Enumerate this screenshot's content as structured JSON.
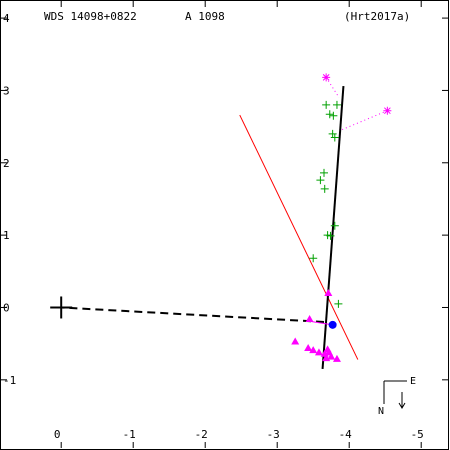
{
  "chart_data": {
    "type": "scatter",
    "header": {
      "wds": "WDS 14098+0822",
      "pair": "A  1098",
      "reference": "(Hrt2017a)"
    },
    "orientation": {
      "north": "N",
      "east": "E"
    },
    "xlim": [
      0.85,
      -5.4
    ],
    "ylim": [
      -1.97,
      4.25
    ],
    "x_ticks": [
      -5,
      -4,
      -3,
      -2,
      -1,
      0
    ],
    "y_ticks": [
      -1,
      0,
      1,
      2,
      3,
      4
    ],
    "colors": {
      "frame": "#000000",
      "green_obs": "#00a000",
      "magenta_obs": "#ff00ff",
      "red_line": "#ff0000",
      "blue_point": "#0000ff"
    },
    "primary": [
      0,
      0
    ],
    "fitted_line": [
      [
        -3.92,
        3.06
      ],
      [
        -3.63,
        -0.85
      ]
    ],
    "node_line": [
      [
        -4.12,
        -0.72
      ],
      [
        -2.48,
        2.66
      ]
    ],
    "latest_position": [
      -3.77,
      -0.24
    ],
    "latest_connector": [
      [
        -3.77,
        -0.24
      ],
      [
        -3.45,
        -0.19
      ]
    ],
    "separation_line": [
      [
        -3.65,
        -0.2
      ],
      [
        0,
        0
      ]
    ],
    "green_observations": [
      [
        -3.83,
        2.8
      ],
      [
        -3.68,
        2.8
      ],
      [
        -3.73,
        2.67
      ],
      [
        -3.78,
        2.65
      ],
      [
        -3.77,
        2.4
      ],
      [
        -3.8,
        2.35
      ],
      [
        -3.65,
        1.86
      ],
      [
        -3.6,
        1.76
      ],
      [
        -3.66,
        1.64
      ],
      [
        -3.8,
        1.13
      ],
      [
        -3.7,
        1.0
      ],
      [
        -3.74,
        0.99
      ],
      [
        -3.5,
        0.68
      ],
      [
        -3.85,
        0.05
      ]
    ],
    "magenta_stars": [
      [
        -4.53,
        2.72
      ],
      [
        -3.68,
        3.18
      ]
    ],
    "magenta_triangles": [
      [
        -3.71,
        0.2
      ],
      [
        -3.45,
        -0.16
      ],
      [
        -3.7,
        -0.58
      ],
      [
        -3.72,
        -0.62
      ],
      [
        -3.66,
        -0.64
      ],
      [
        -3.58,
        -0.62
      ],
      [
        -3.5,
        -0.59
      ],
      [
        -3.43,
        -0.56
      ],
      [
        -3.25,
        -0.47
      ],
      [
        -3.75,
        -0.68
      ],
      [
        -3.83,
        -0.71
      ],
      [
        -3.68,
        -0.7
      ]
    ]
  }
}
